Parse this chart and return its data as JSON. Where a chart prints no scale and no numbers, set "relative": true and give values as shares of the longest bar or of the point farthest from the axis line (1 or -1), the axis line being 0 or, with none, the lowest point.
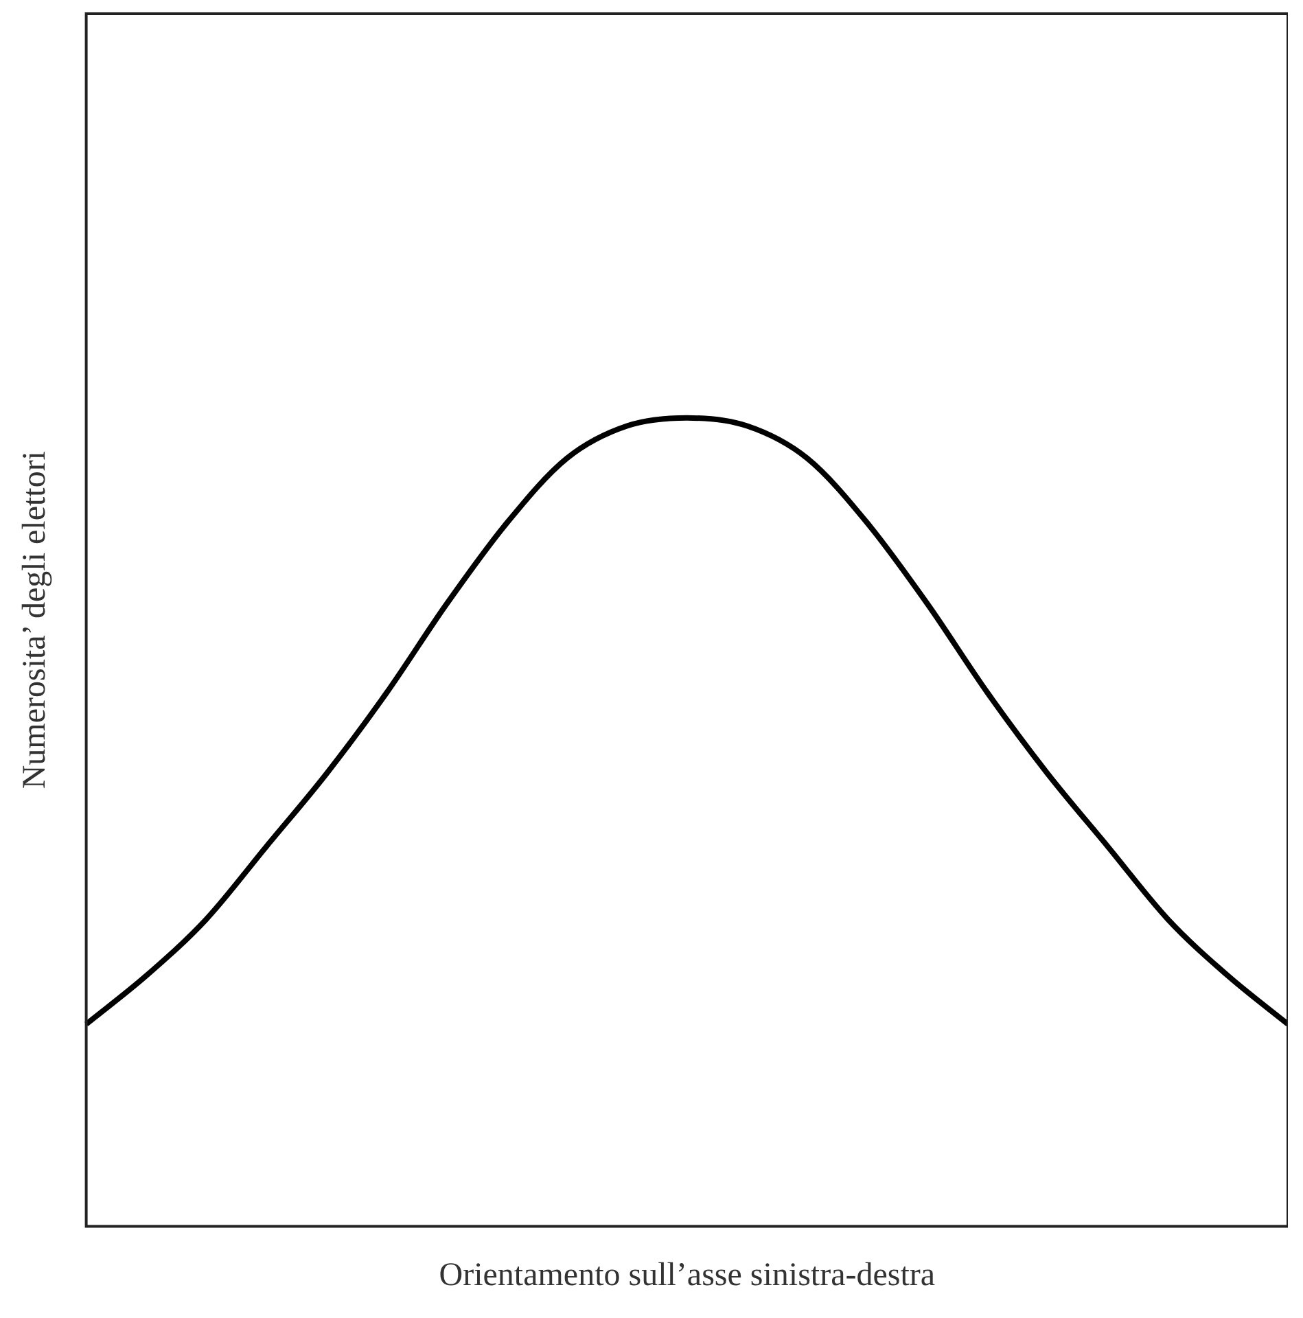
{
  "chart_data": {
    "type": "line",
    "relative": true,
    "xlabel": "Orientamento sull’asse sinistra-destra",
    "ylabel": "Numerosita’ degli elettori",
    "marker": "none",
    "line_style": "solid",
    "categories": [
      null,
      null,
      null,
      null,
      null,
      null,
      null,
      null,
      null,
      null,
      null,
      null,
      null,
      null,
      null,
      null,
      null,
      null,
      null,
      null,
      null
    ],
    "series": [
      {
        "color": "#000000",
        "values": [
          0.25,
          0.31,
          0.38,
          0.47,
          0.56,
          0.66,
          0.77,
          0.87,
          0.95,
          0.99,
          1.0,
          0.99,
          0.95,
          0.87,
          0.77,
          0.66,
          0.56,
          0.47,
          0.38,
          0.31,
          0.25
        ]
      }
    ]
  }
}
